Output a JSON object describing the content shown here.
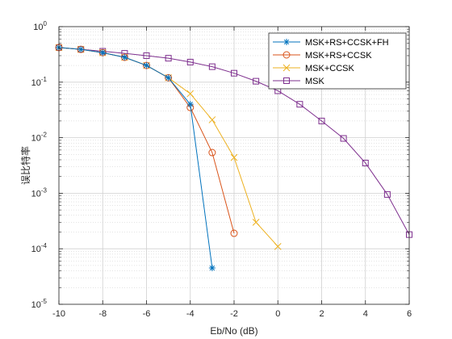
{
  "chart_data": {
    "type": "line",
    "xlabel": "Eb/No (dB)",
    "ylabel": "误比特率",
    "xlim": [
      -10,
      6
    ],
    "xticks": [
      -10,
      -8,
      -6,
      -4,
      -2,
      0,
      2,
      4,
      6
    ],
    "ylim": [
      1e-05,
      1
    ],
    "yscale": "log",
    "yticks": [
      {
        "value": 1e-05,
        "base": "10",
        "exp": "-5"
      },
      {
        "value": 0.0001,
        "base": "10",
        "exp": "-4"
      },
      {
        "value": 0.001,
        "base": "10",
        "exp": "-3"
      },
      {
        "value": 0.01,
        "base": "10",
        "exp": "-2"
      },
      {
        "value": 0.1,
        "base": "10",
        "exp": "-1"
      },
      {
        "value": 1,
        "base": "10",
        "exp": "0"
      }
    ],
    "grid": true,
    "minor_grid": true,
    "legend_position": "top-right",
    "series": [
      {
        "name": "MSK+RS+CCSK+FH",
        "color": "#0072BD",
        "marker": "asterisk",
        "x": [
          -10,
          -9,
          -8,
          -7,
          -6,
          -5,
          -4,
          -3
        ],
        "y": [
          0.42,
          0.39,
          0.34,
          0.28,
          0.2,
          0.12,
          0.04,
          4.5e-05
        ]
      },
      {
        "name": "MSK+RS+CCSK",
        "color": "#D95319",
        "marker": "circle",
        "x": [
          -10,
          -9,
          -8,
          -7,
          -6,
          -5,
          -4,
          -3,
          -2
        ],
        "y": [
          0.42,
          0.39,
          0.34,
          0.28,
          0.2,
          0.12,
          0.035,
          0.0054,
          0.00019
        ]
      },
      {
        "name": "MSK+CCSK",
        "color": "#EDB120",
        "marker": "cross",
        "x": [
          -10,
          -9,
          -8,
          -7,
          -6,
          -5,
          -4,
          -3,
          -2,
          -1,
          0
        ],
        "y": [
          0.42,
          0.39,
          0.34,
          0.28,
          0.2,
          0.12,
          0.062,
          0.021,
          0.0044,
          0.0003,
          0.00011
        ]
      },
      {
        "name": "MSK",
        "color": "#7E2F8E",
        "marker": "square",
        "x": [
          -10,
          -9,
          -8,
          -7,
          -6,
          -5,
          -4,
          -3,
          -2,
          -1,
          0,
          1,
          2,
          3,
          4,
          5,
          6
        ],
        "y": [
          0.42,
          0.39,
          0.36,
          0.33,
          0.3,
          0.27,
          0.23,
          0.19,
          0.145,
          0.104,
          0.07,
          0.04,
          0.02,
          0.0097,
          0.0035,
          0.00095,
          0.00018
        ]
      }
    ]
  }
}
